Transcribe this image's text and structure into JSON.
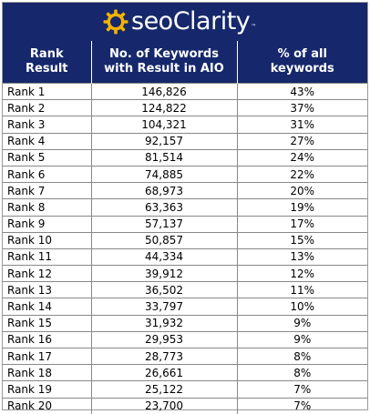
{
  "brand": {
    "name": "seoClarity",
    "trademark": "™",
    "logo_color": "#f2b300"
  },
  "colors": {
    "header_bg": "#16286b",
    "header_text": "#ffffff"
  },
  "table": {
    "columns": [
      "Rank\nResult",
      "No. of Keywords\nwith Result in AIO",
      "% of all\nkeywords"
    ],
    "rows": [
      [
        "Rank 1",
        "146,826",
        "43%"
      ],
      [
        "Rank 2",
        "124,822",
        "37%"
      ],
      [
        "Rank 3",
        "104,321",
        "31%"
      ],
      [
        "Rank 4",
        "92,157",
        "27%"
      ],
      [
        "Rank 5",
        "81,514",
        "24%"
      ],
      [
        "Rank 6",
        "74,885",
        "22%"
      ],
      [
        "Rank 7",
        "68,973",
        "20%"
      ],
      [
        "Rank 8",
        "63,363",
        "19%"
      ],
      [
        "Rank 9",
        "57,137",
        "17%"
      ],
      [
        "Rank 10",
        "50,857",
        "15%"
      ],
      [
        "Rank 11",
        "44,334",
        "13%"
      ],
      [
        "Rank 12",
        "39,912",
        "12%"
      ],
      [
        "Rank 13",
        "36,502",
        "11%"
      ],
      [
        "Rank 14",
        "33,797",
        "10%"
      ],
      [
        "Rank 15",
        "31,932",
        "9%"
      ],
      [
        "Rank 16",
        "29,953",
        "9%"
      ],
      [
        "Rank 17",
        "28,773",
        "8%"
      ],
      [
        "Rank 18",
        "26,661",
        "8%"
      ],
      [
        "Rank 19",
        "25,122",
        "7%"
      ],
      [
        "Rank 20",
        "23,700",
        "7%"
      ]
    ]
  },
  "chart_data": {
    "type": "table",
    "columns": [
      "Rank Result",
      "No. of Keywords with Result in AIO",
      "% of all keywords"
    ],
    "categories": [
      "Rank 1",
      "Rank 2",
      "Rank 3",
      "Rank 4",
      "Rank 5",
      "Rank 6",
      "Rank 7",
      "Rank 8",
      "Rank 9",
      "Rank 10",
      "Rank 11",
      "Rank 12",
      "Rank 13",
      "Rank 14",
      "Rank 15",
      "Rank 16",
      "Rank 17",
      "Rank 18",
      "Rank 19",
      "Rank 20"
    ],
    "series": [
      {
        "name": "No. of Keywords with Result in AIO",
        "values": [
          146826,
          124822,
          104321,
          92157,
          81514,
          74885,
          68973,
          63363,
          57137,
          50857,
          44334,
          39912,
          36502,
          33797,
          31932,
          29953,
          28773,
          26661,
          25122,
          23700
        ]
      },
      {
        "name": "% of all keywords",
        "values": [
          43,
          37,
          31,
          27,
          24,
          22,
          20,
          19,
          17,
          15,
          13,
          12,
          11,
          10,
          9,
          9,
          8,
          8,
          7,
          7
        ]
      }
    ]
  }
}
